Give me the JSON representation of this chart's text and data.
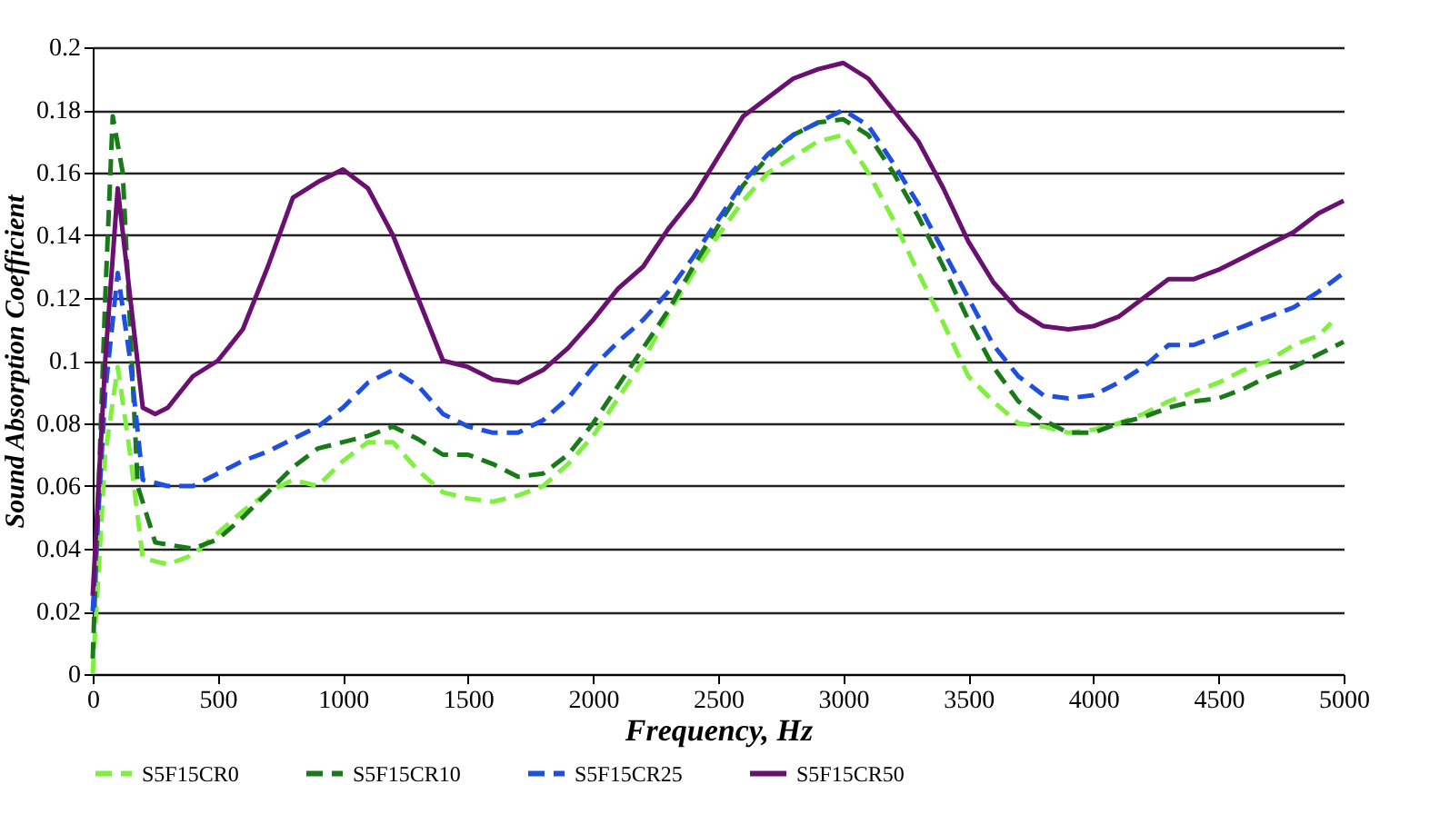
{
  "chart_data": {
    "type": "line",
    "xlabel": "Frequency, Hz",
    "ylabel": "Sound Absorption Coefficient",
    "xlim": [
      0,
      5000
    ],
    "xticks": [
      0,
      500,
      1000,
      1500,
      2000,
      2500,
      3000,
      3500,
      4000,
      4500,
      5000
    ],
    "ylim": [
      0,
      0.2
    ],
    "yticks": [
      0,
      0.02,
      0.04,
      0.06,
      0.08,
      0.1,
      0.12,
      0.14,
      0.16,
      0.18,
      0.2
    ],
    "grid": "y",
    "legend": "bottom",
    "marker": "none",
    "series": [
      {
        "name": "S5F15CR0",
        "color": "#80f040",
        "line_style": "dashed",
        "x": [
          0,
          50,
          100,
          150,
          200,
          300,
          400,
          500,
          600,
          700,
          800,
          900,
          1000,
          1100,
          1200,
          1300,
          1400,
          1500,
          1600,
          1700,
          1800,
          1900,
          2000,
          2100,
          2200,
          2300,
          2400,
          2500,
          2600,
          2700,
          2800,
          2900,
          3000,
          3100,
          3200,
          3300,
          3400,
          3500,
          3600,
          3700,
          3800,
          3900,
          4000,
          4100,
          4200,
          4300,
          4400,
          4500,
          4600,
          4700,
          4800,
          4900,
          4950
        ],
        "values": [
          0.0,
          0.07,
          0.098,
          0.07,
          0.037,
          0.035,
          0.038,
          0.045,
          0.052,
          0.058,
          0.062,
          0.06,
          0.068,
          0.074,
          0.074,
          0.065,
          0.058,
          0.056,
          0.055,
          0.057,
          0.06,
          0.067,
          0.076,
          0.088,
          0.1,
          0.115,
          0.128,
          0.14,
          0.151,
          0.16,
          0.165,
          0.17,
          0.172,
          0.16,
          0.145,
          0.128,
          0.112,
          0.095,
          0.087,
          0.08,
          0.079,
          0.077,
          0.078,
          0.08,
          0.083,
          0.087,
          0.09,
          0.093,
          0.097,
          0.1,
          0.105,
          0.108,
          0.112
        ]
      },
      {
        "name": "S5F15CR10",
        "color": "#1a7a1a",
        "line_style": "dashed",
        "x": [
          0,
          50,
          80,
          120,
          180,
          250,
          400,
          500,
          600,
          700,
          800,
          900,
          1000,
          1100,
          1200,
          1300,
          1400,
          1500,
          1600,
          1700,
          1800,
          1900,
          2000,
          2100,
          2200,
          2300,
          2400,
          2500,
          2600,
          2700,
          2800,
          2900,
          3000,
          3100,
          3200,
          3300,
          3400,
          3500,
          3600,
          3700,
          3800,
          3900,
          4000,
          4100,
          4200,
          4300,
          4400,
          4500,
          4600,
          4700,
          4800,
          4900,
          5000
        ],
        "values": [
          0.005,
          0.12,
          0.178,
          0.16,
          0.06,
          0.042,
          0.04,
          0.043,
          0.05,
          0.058,
          0.066,
          0.072,
          0.074,
          0.076,
          0.079,
          0.075,
          0.07,
          0.07,
          0.067,
          0.063,
          0.064,
          0.07,
          0.08,
          0.092,
          0.104,
          0.116,
          0.13,
          0.143,
          0.156,
          0.165,
          0.172,
          0.176,
          0.177,
          0.172,
          0.16,
          0.146,
          0.13,
          0.113,
          0.098,
          0.087,
          0.081,
          0.077,
          0.077,
          0.08,
          0.082,
          0.085,
          0.087,
          0.088,
          0.091,
          0.095,
          0.098,
          0.102,
          0.106
        ]
      },
      {
        "name": "S5F15CR25",
        "color": "#1f4fe0",
        "line_style": "dashed",
        "x": [
          0,
          50,
          100,
          150,
          200,
          300,
          400,
          500,
          600,
          700,
          800,
          900,
          1000,
          1100,
          1200,
          1300,
          1400,
          1500,
          1600,
          1700,
          1800,
          1900,
          2000,
          2100,
          2200,
          2300,
          2400,
          2500,
          2600,
          2700,
          2800,
          2900,
          3000,
          3100,
          3200,
          3300,
          3400,
          3500,
          3600,
          3700,
          3800,
          3900,
          4000,
          4100,
          4200,
          4300,
          4400,
          4500,
          4600,
          4700,
          4800,
          4900,
          5000
        ],
        "values": [
          0.02,
          0.09,
          0.128,
          0.1,
          0.062,
          0.06,
          0.06,
          0.064,
          0.068,
          0.071,
          0.075,
          0.079,
          0.085,
          0.093,
          0.097,
          0.092,
          0.083,
          0.079,
          0.077,
          0.077,
          0.081,
          0.088,
          0.098,
          0.106,
          0.113,
          0.122,
          0.133,
          0.145,
          0.157,
          0.166,
          0.172,
          0.176,
          0.18,
          0.175,
          0.163,
          0.15,
          0.135,
          0.12,
          0.105,
          0.095,
          0.089,
          0.088,
          0.089,
          0.093,
          0.098,
          0.105,
          0.105,
          0.108,
          0.111,
          0.114,
          0.117,
          0.122,
          0.128
        ]
      },
      {
        "name": "S5F15CR50",
        "color": "#6a1070",
        "line_style": "solid",
        "x": [
          0,
          50,
          100,
          150,
          200,
          250,
          300,
          400,
          500,
          600,
          700,
          800,
          900,
          1000,
          1100,
          1200,
          1300,
          1400,
          1500,
          1600,
          1700,
          1800,
          1900,
          2000,
          2100,
          2200,
          2300,
          2400,
          2500,
          2600,
          2700,
          2800,
          2900,
          3000,
          3100,
          3200,
          3300,
          3400,
          3500,
          3600,
          3700,
          3800,
          3900,
          4000,
          4100,
          4200,
          4300,
          4400,
          4500,
          4600,
          4700,
          4800,
          4900,
          5000
        ],
        "values": [
          0.025,
          0.1,
          0.155,
          0.12,
          0.085,
          0.083,
          0.085,
          0.095,
          0.1,
          0.11,
          0.13,
          0.152,
          0.157,
          0.161,
          0.155,
          0.14,
          0.12,
          0.1,
          0.098,
          0.094,
          0.093,
          0.097,
          0.104,
          0.113,
          0.123,
          0.13,
          0.142,
          0.152,
          0.165,
          0.178,
          0.184,
          0.19,
          0.193,
          0.195,
          0.19,
          0.18,
          0.17,
          0.155,
          0.138,
          0.125,
          0.116,
          0.111,
          0.11,
          0.111,
          0.114,
          0.12,
          0.126,
          0.126,
          0.129,
          0.133,
          0.137,
          0.141,
          0.147,
          0.151
        ]
      }
    ]
  }
}
